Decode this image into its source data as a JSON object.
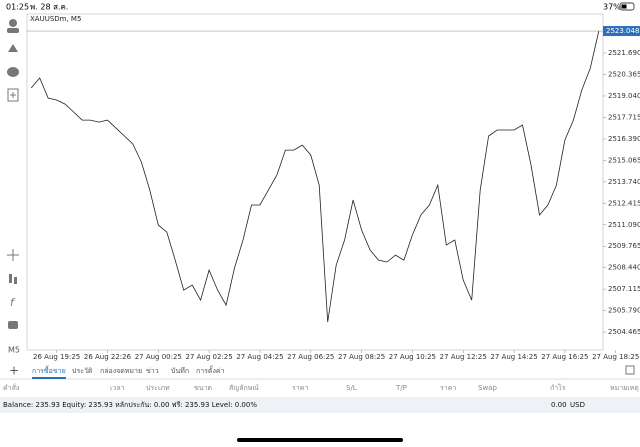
{
  "status_bar": {
    "time": "01:25",
    "date": "พ. 28 ส.ค.",
    "battery": "37%"
  },
  "toolbar": {
    "timeframe": "M5"
  },
  "chart_data": {
    "type": "line",
    "title": "XAUUSDm, M5",
    "x": [
      -12,
      -8,
      -4,
      0,
      4,
      8,
      12,
      16,
      20,
      24,
      28,
      32,
      36,
      40,
      44,
      48,
      52,
      56,
      60,
      64,
      68,
      72,
      76,
      80,
      84,
      88,
      92,
      96,
      100,
      104,
      108,
      112,
      116,
      120,
      124,
      128,
      132,
      136,
      140,
      144,
      148,
      152,
      156,
      160,
      164,
      168,
      172,
      176,
      180,
      184,
      188,
      192,
      196,
      200,
      204,
      208,
      212,
      216,
      220,
      224,
      228,
      232,
      236,
      240,
      244,
      248,
      252,
      256
    ],
    "series": [
      {
        "name": "XAUUSDm",
        "color": "#222222",
        "values": [
          2519.53,
          2520.15,
          2518.91,
          2518.79,
          2518.54,
          2518.05,
          2517.55,
          2517.55,
          2517.43,
          2517.55,
          2517.06,
          2516.57,
          2516.07,
          2514.96,
          2513.23,
          2511.07,
          2510.64,
          2508.91,
          2507.06,
          2507.37,
          2506.44,
          2508.29,
          2507.06,
          2506.13,
          2508.42,
          2510.15,
          2512.31,
          2512.31,
          2513.23,
          2514.16,
          2515.7,
          2515.7,
          2516.01,
          2515.39,
          2513.54,
          2505.09,
          2508.6,
          2510.15,
          2512.62,
          2510.76,
          2509.53,
          2508.91,
          2508.79,
          2509.22,
          2508.91,
          2510.46,
          2511.69,
          2512.31,
          2513.54,
          2509.84,
          2510.15,
          2507.68,
          2506.44,
          2513.23,
          2516.57,
          2516.94,
          2516.94,
          2516.94,
          2517.25,
          2514.78,
          2511.69,
          2512.31,
          2513.54,
          2516.32,
          2517.55,
          2519.41,
          2520.76,
          2523.05
        ]
      }
    ],
    "xlim": [
      -14,
      258
    ],
    "ylim": [
      2503.36,
      2524.1
    ],
    "xticks": [
      {
        "value": 0,
        "label": "26 Aug 19:25"
      },
      {
        "value": 24,
        "label": "26 Aug 22:26"
      },
      {
        "value": 48,
        "label": "27 Aug 00:25"
      },
      {
        "value": 72,
        "label": "27 Aug 02:25"
      },
      {
        "value": 96,
        "label": "27 Aug 04:25"
      },
      {
        "value": 120,
        "label": "27 Aug 06:25"
      },
      {
        "value": 144,
        "label": "27 Aug 08:25"
      },
      {
        "value": 168,
        "label": "27 Aug 10:25"
      },
      {
        "value": 192,
        "label": "27 Aug 12:25"
      },
      {
        "value": 216,
        "label": "27 Aug 14:25"
      },
      {
        "value": 240,
        "label": "27 Aug 16:25"
      },
      {
        "value": 264,
        "label": "27 Aug 18:25"
      }
    ],
    "yticks": [
      {
        "value": 2521.69,
        "label": "2521.690"
      },
      2520.365,
      {
        "value": 2519.04,
        "label": "2519.040"
      },
      2517.715,
      {
        "value": 2516.39,
        "label": "2516.390"
      },
      2515.065,
      {
        "value": 2513.74,
        "label": "2513.740"
      },
      2512.415,
      {
        "value": 2511.09,
        "label": "2511.090"
      },
      2509.765,
      {
        "value": 2508.44,
        "label": "2508.440"
      },
      2507.115,
      {
        "value": 2505.79,
        "label": "2505.790"
      },
      2504.465
    ],
    "current_price": 2523.048
  },
  "tabs": [
    "การซื้อขาย",
    "ประวัติ",
    "กล่องจดหมาย",
    "ข่าว",
    "บันทึก",
    "การตั้งค่า"
  ],
  "columns": [
    "คำสั่ง",
    "เวลา",
    "ประเภท",
    "ขนาด",
    "สัญลักษณ์",
    "ราคา",
    "S/L",
    "T/P",
    "ราคา",
    "Swap",
    "กำไร",
    "หมายเหตุ"
  ],
  "account": {
    "summary": "Balance: 235.93 Equity: 235.93 หลักประกัน: 0.00 ฟรี: 235.93 Level: 0.00%",
    "profit": "0.00",
    "currency": "USD"
  }
}
